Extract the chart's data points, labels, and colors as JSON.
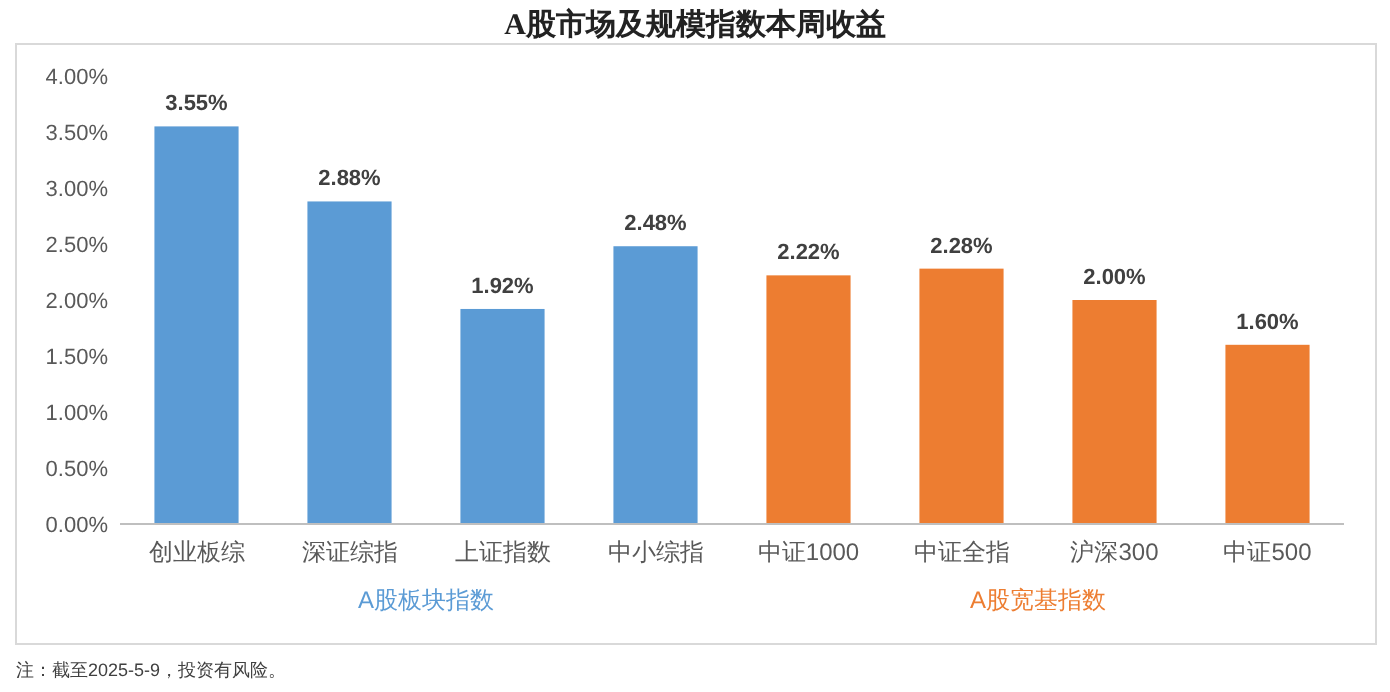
{
  "chart_data": {
    "type": "bar",
    "title": "A股市场及规模指数本周收益",
    "categories": [
      "创业板综",
      "深证综指",
      "上证指数",
      "中小综指",
      "中证1000",
      "中证全指",
      "沪深300",
      "中证500"
    ],
    "values": [
      3.55,
      2.88,
      1.92,
      2.48,
      2.22,
      2.28,
      2.0,
      1.6
    ],
    "value_labels": [
      "3.55%",
      "2.88%",
      "1.92%",
      "2.48%",
      "2.22%",
      "2.28%",
      "2.00%",
      "1.60%"
    ],
    "colors": [
      "#5b9bd5",
      "#5b9bd5",
      "#5b9bd5",
      "#5b9bd5",
      "#ed7d31",
      "#ed7d31",
      "#ed7d31",
      "#ed7d31"
    ],
    "ylim": [
      0,
      4
    ],
    "yticks": [
      {
        "value": 0,
        "label": "0.00%"
      },
      {
        "value": 0.5,
        "label": "0.50%"
      },
      {
        "value": 1,
        "label": "1.00%"
      },
      {
        "value": 1.5,
        "label": "1.50%"
      },
      {
        "value": 2,
        "label": "2.00%"
      },
      {
        "value": 2.5,
        "label": "2.50%"
      },
      {
        "value": 3,
        "label": "3.00%"
      },
      {
        "value": 3.5,
        "label": "3.50%"
      },
      {
        "value": 4,
        "label": "4.00%"
      }
    ],
    "grid": false,
    "annotations": [
      "A股板块指数",
      "A股宽基指数",
      "注：截至2025-5-9，投资有风险。"
    ]
  }
}
